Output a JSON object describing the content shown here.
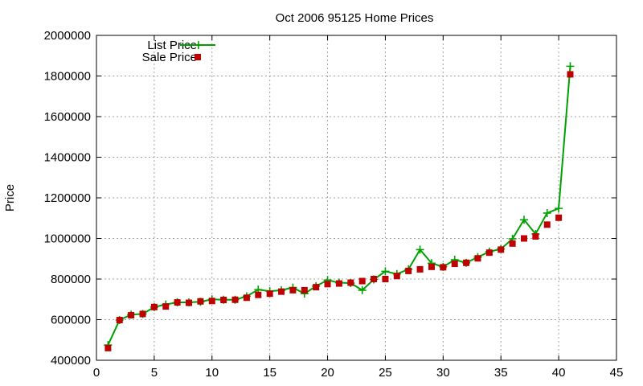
{
  "chart_data": {
    "type": "line",
    "title": "Oct 2006 95125 Home Prices",
    "xlabel": "",
    "ylabel": "Price",
    "xlim": [
      0,
      45
    ],
    "ylim": [
      400000,
      2000000
    ],
    "xticks": [
      0,
      5,
      10,
      15,
      20,
      25,
      30,
      35,
      40,
      45
    ],
    "yticks": [
      400000,
      600000,
      800000,
      1000000,
      1200000,
      1400000,
      1600000,
      1800000,
      2000000
    ],
    "grid": true,
    "legend_position": "top-left",
    "x": [
      1,
      2,
      3,
      4,
      5,
      6,
      7,
      8,
      9,
      10,
      11,
      12,
      13,
      14,
      15,
      16,
      17,
      18,
      19,
      20,
      21,
      22,
      23,
      24,
      25,
      26,
      27,
      28,
      29,
      30,
      31,
      32,
      33,
      34,
      35,
      36,
      37,
      38,
      39,
      40,
      41
    ],
    "series": [
      {
        "name": "List Price",
        "style": "line+plus",
        "color": "#00a000",
        "values": [
          475000,
          598000,
          625000,
          628000,
          662000,
          675000,
          685000,
          685000,
          688000,
          700000,
          698000,
          698000,
          715000,
          748000,
          740000,
          745000,
          758000,
          728000,
          765000,
          795000,
          782000,
          780000,
          745000,
          798000,
          838000,
          825000,
          848000,
          945000,
          878000,
          860000,
          895000,
          880000,
          908000,
          935000,
          948000,
          998000,
          1092000,
          1022000,
          1125000,
          1148000,
          1848000
        ]
      },
      {
        "name": "Sale Price",
        "style": "square-markers",
        "color": "#c00000",
        "values": [
          460000,
          598000,
          622000,
          628000,
          662000,
          665000,
          685000,
          683000,
          690000,
          692000,
          697000,
          698000,
          708000,
          722000,
          728000,
          738000,
          745000,
          745000,
          760000,
          775000,
          778000,
          782000,
          790000,
          800000,
          800000,
          815000,
          840000,
          848000,
          860000,
          858000,
          875000,
          880000,
          902000,
          930000,
          945000,
          975000,
          1000000,
          1010000,
          1068000,
          1102000,
          1808000
        ]
      }
    ]
  }
}
